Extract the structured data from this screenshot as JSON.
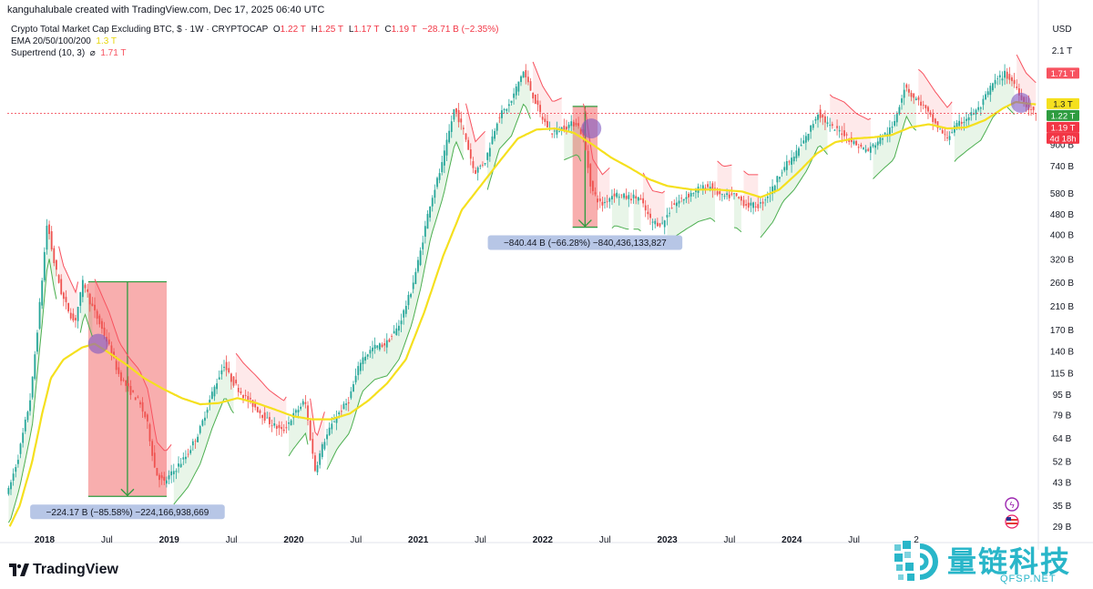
{
  "header": {
    "attribution": "kanguhalubale created with TradingView.com, Dec 17, 2025 06:40 UTC"
  },
  "legend": {
    "symbol": "Crypto Total Market Cap Excluding BTC, $ · 1W · CRYPTOCAP",
    "ohlc": {
      "o_label": "O",
      "o": "1.22 T",
      "h_label": "H",
      "h": "1.25 T",
      "l_label": "L",
      "l": "1.17 T",
      "c_label": "C",
      "c": "1.19 T",
      "change": "−28.71 B (−2.35%)"
    },
    "ema_label": "EMA 20/50/100/200",
    "ema_value": "1.3 T",
    "st_label": "Supertrend (10, 3)",
    "st_icon": "⌀",
    "st_value": "1.71 T"
  },
  "colors": {
    "up": "#26a69a",
    "down": "#ef5350",
    "ema": "#f5e01e",
    "supertrend_up": "#4caf50",
    "supertrend_down": "#f7525f",
    "measure_box": "#f36c6c",
    "measure_arrow": "#2e9c3f",
    "label_bg": "#b7c6e6"
  },
  "price_tags": {
    "st": "1.71 T",
    "ema": "1.3 T",
    "open": "1.22 T",
    "close": "1.19 T",
    "countdown": "4d 18h"
  },
  "measures": [
    {
      "label": "−224.17 B (−85.58%) −224,166,938,669"
    },
    {
      "label": "−840.44 B (−66.28%) −840,436,133,827"
    }
  ],
  "chart_data": {
    "type": "candlestick",
    "title": "Crypto Total Market Cap Excluding BTC, $ · 1W · CRYPTOCAP",
    "ylabel": "USD",
    "y_scale": "log",
    "currency_label": "USD",
    "y_ticks": [
      "2.1 T",
      "1.3 T",
      "900 B",
      "740 B",
      "580 B",
      "480 B",
      "400 B",
      "320 B",
      "260 B",
      "210 B",
      "170 B",
      "140 B",
      "115 B",
      "95 B",
      "79 B",
      "64 B",
      "52 B",
      "43 B",
      "35 B",
      "29 B"
    ],
    "y_tick_values": [
      2100,
      1300,
      900,
      740,
      580,
      480,
      400,
      320,
      260,
      210,
      170,
      140,
      115,
      95,
      79,
      64,
      52,
      43,
      35,
      29
    ],
    "x_ticks": [
      "2018",
      "Jul",
      "2019",
      "Jul",
      "2020",
      "Jul",
      "2021",
      "Jul",
      "2022",
      "Jul",
      "2023",
      "Jul",
      "2024",
      "Jul",
      "2"
    ],
    "x_tick_dates": [
      2018.0,
      2018.5,
      2019.0,
      2019.5,
      2020.0,
      2020.5,
      2021.0,
      2021.5,
      2022.0,
      2022.5,
      2023.0,
      2023.5,
      2024.0,
      2024.5,
      2025.0
    ],
    "ylim": [
      27,
      2500
    ],
    "xlim": [
      2017.7,
      2025.98
    ],
    "price_points": [
      [
        2017.72,
        40
      ],
      [
        2017.8,
        55
      ],
      [
        2017.9,
        95
      ],
      [
        2017.98,
        240
      ],
      [
        2018.03,
        450
      ],
      [
        2018.08,
        320
      ],
      [
        2018.15,
        230
      ],
      [
        2018.25,
        180
      ],
      [
        2018.32,
        265
      ],
      [
        2018.38,
        215
      ],
      [
        2018.45,
        180
      ],
      [
        2018.52,
        150
      ],
      [
        2018.6,
        115
      ],
      [
        2018.68,
        100
      ],
      [
        2018.76,
        90
      ],
      [
        2018.83,
        75
      ],
      [
        2018.9,
        47
      ],
      [
        2018.97,
        43
      ],
      [
        2019.05,
        48
      ],
      [
        2019.15,
        55
      ],
      [
        2019.25,
        68
      ],
      [
        2019.35,
        95
      ],
      [
        2019.45,
        125
      ],
      [
        2019.5,
        110
      ],
      [
        2019.6,
        95
      ],
      [
        2019.7,
        85
      ],
      [
        2019.8,
        75
      ],
      [
        2019.92,
        68
      ],
      [
        2020.0,
        78
      ],
      [
        2020.1,
        90
      ],
      [
        2020.18,
        48
      ],
      [
        2020.25,
        62
      ],
      [
        2020.35,
        78
      ],
      [
        2020.45,
        90
      ],
      [
        2020.55,
        130
      ],
      [
        2020.65,
        145
      ],
      [
        2020.75,
        150
      ],
      [
        2020.85,
        175
      ],
      [
        2020.95,
        240
      ],
      [
        2021.02,
        330
      ],
      [
        2021.1,
        520
      ],
      [
        2021.2,
        750
      ],
      [
        2021.3,
        1250
      ],
      [
        2021.38,
        1000
      ],
      [
        2021.46,
        700
      ],
      [
        2021.55,
        780
      ],
      [
        2021.65,
        1150
      ],
      [
        2021.75,
        1300
      ],
      [
        2021.85,
        1750
      ],
      [
        2021.93,
        1400
      ],
      [
        2022.0,
        1150
      ],
      [
        2022.08,
        1000
      ],
      [
        2022.18,
        1050
      ],
      [
        2022.28,
        1100
      ],
      [
        2022.34,
        950
      ],
      [
        2022.4,
        600
      ],
      [
        2022.48,
        520
      ],
      [
        2022.58,
        580
      ],
      [
        2022.68,
        560
      ],
      [
        2022.78,
        560
      ],
      [
        2022.88,
        450
      ],
      [
        2022.97,
        440
      ],
      [
        2023.05,
        520
      ],
      [
        2023.15,
        560
      ],
      [
        2023.25,
        600
      ],
      [
        2023.35,
        620
      ],
      [
        2023.45,
        560
      ],
      [
        2023.55,
        570
      ],
      [
        2023.65,
        520
      ],
      [
        2023.75,
        520
      ],
      [
        2023.85,
        600
      ],
      [
        2023.93,
        720
      ],
      [
        2024.02,
        800
      ],
      [
        2024.12,
        950
      ],
      [
        2024.22,
        1200
      ],
      [
        2024.32,
        1050
      ],
      [
        2024.42,
        1000
      ],
      [
        2024.52,
        900
      ],
      [
        2024.62,
        850
      ],
      [
        2024.72,
        950
      ],
      [
        2024.82,
        1050
      ],
      [
        2024.92,
        1550
      ],
      [
        2024.97,
        1400
      ],
      [
        2025.05,
        1300
      ],
      [
        2025.15,
        1100
      ],
      [
        2025.25,
        950
      ],
      [
        2025.32,
        1050
      ],
      [
        2025.42,
        1150
      ],
      [
        2025.52,
        1250
      ],
      [
        2025.62,
        1550
      ],
      [
        2025.72,
        1700
      ],
      [
        2025.8,
        1550
      ],
      [
        2025.88,
        1300
      ],
      [
        2025.96,
        1190
      ]
    ],
    "ema_points": [
      [
        2017.72,
        29
      ],
      [
        2017.8,
        35
      ],
      [
        2017.9,
        52
      ],
      [
        2017.98,
        80
      ],
      [
        2018.05,
        110
      ],
      [
        2018.15,
        130
      ],
      [
        2018.3,
        145
      ],
      [
        2018.4,
        150
      ],
      [
        2018.5,
        140
      ],
      [
        2018.65,
        125
      ],
      [
        2018.8,
        110
      ],
      [
        2018.95,
        100
      ],
      [
        2019.1,
        92
      ],
      [
        2019.25,
        87
      ],
      [
        2019.4,
        88
      ],
      [
        2019.55,
        92
      ],
      [
        2019.7,
        88
      ],
      [
        2019.85,
        83
      ],
      [
        2020.0,
        78
      ],
      [
        2020.15,
        76
      ],
      [
        2020.3,
        76
      ],
      [
        2020.45,
        80
      ],
      [
        2020.6,
        90
      ],
      [
        2020.75,
        105
      ],
      [
        2020.9,
        130
      ],
      [
        2021.05,
        200
      ],
      [
        2021.2,
        330
      ],
      [
        2021.35,
        500
      ],
      [
        2021.5,
        620
      ],
      [
        2021.65,
        770
      ],
      [
        2021.8,
        950
      ],
      [
        2021.95,
        1030
      ],
      [
        2022.1,
        1040
      ],
      [
        2022.25,
        1000
      ],
      [
        2022.4,
        900
      ],
      [
        2022.55,
        800
      ],
      [
        2022.7,
        730
      ],
      [
        2022.85,
        660
      ],
      [
        2023.0,
        620
      ],
      [
        2023.2,
        600
      ],
      [
        2023.4,
        600
      ],
      [
        2023.6,
        590
      ],
      [
        2023.75,
        560
      ],
      [
        2023.9,
        600
      ],
      [
        2024.05,
        700
      ],
      [
        2024.2,
        830
      ],
      [
        2024.35,
        920
      ],
      [
        2024.5,
        950
      ],
      [
        2024.65,
        960
      ],
      [
        2024.8,
        980
      ],
      [
        2024.95,
        1050
      ],
      [
        2025.1,
        1080
      ],
      [
        2025.25,
        1040
      ],
      [
        2025.4,
        1050
      ],
      [
        2025.55,
        1120
      ],
      [
        2025.7,
        1250
      ],
      [
        2025.8,
        1320
      ],
      [
        2025.9,
        1300
      ],
      [
        2025.97,
        1290
      ]
    ],
    "measure_ranges": [
      {
        "x1": 2018.35,
        "x2": 2018.98,
        "from": 262,
        "to": 38
      },
      {
        "x1": 2022.24,
        "x2": 2022.44,
        "from": 1268,
        "to": 428
      }
    ]
  }
}
